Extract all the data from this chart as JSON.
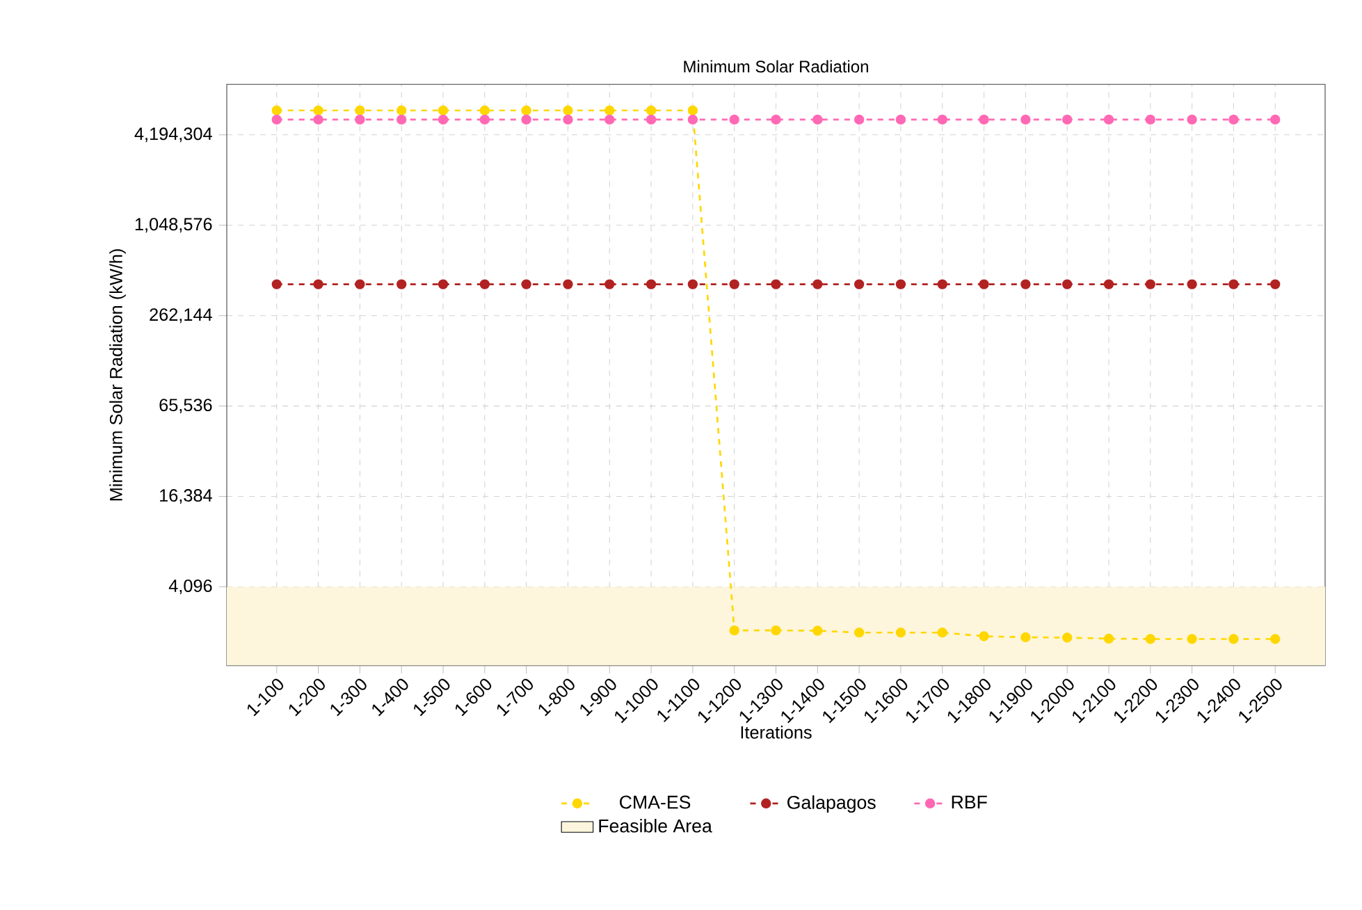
{
  "chart_data": {
    "type": "line",
    "title": "Minimum Solar Radiation",
    "xlabel": "Iterations",
    "ylabel": "Minimum Solar Radiation (kW/h)",
    "categories": [
      "1-100",
      "1-200",
      "1-300",
      "1-400",
      "1-500",
      "1-600",
      "1-700",
      "1-800",
      "1-900",
      "1-1000",
      "1-1100",
      "1-1200",
      "1-1300",
      "1-1400",
      "1-1500",
      "1-1600",
      "1-1700",
      "1-1800",
      "1-1900",
      "1-2000",
      "1-2100",
      "1-2200",
      "1-2300",
      "1-2400",
      "1-2500"
    ],
    "series": [
      {
        "name": "CMA-ES",
        "color": "#ffd700",
        "values": [
          6100000,
          6100000,
          6100000,
          6100000,
          6100000,
          6100000,
          6100000,
          6100000,
          6100000,
          6100000,
          6100000,
          2100,
          2100,
          2090,
          2030,
          2030,
          2030,
          1920,
          1890,
          1880,
          1850,
          1840,
          1840,
          1840,
          1840
        ]
      },
      {
        "name": "Galapagos",
        "color": "#b22222",
        "values": [
          424000,
          424000,
          424000,
          424000,
          424000,
          424000,
          424000,
          424000,
          424000,
          424000,
          424000,
          424000,
          424000,
          424000,
          424000,
          424000,
          424000,
          424000,
          424000,
          424000,
          424000,
          424000,
          424000,
          424000,
          424000
        ]
      },
      {
        "name": "RBF",
        "color": "#ff69b4",
        "values": [
          5300000,
          5300000,
          5300000,
          5300000,
          5300000,
          5300000,
          5300000,
          5300000,
          5300000,
          5300000,
          5300000,
          5300000,
          5300000,
          5300000,
          5300000,
          5300000,
          5300000,
          5300000,
          5300000,
          5300000,
          5300000,
          5300000,
          5300000,
          5300000,
          5300000
        ]
      }
    ],
    "log": "y",
    "ylim": [
      1225,
      9100000
    ],
    "yticks": [
      {
        "value": 4096,
        "label": "4,096"
      },
      {
        "value": 16384,
        "label": "16,384"
      },
      {
        "value": 65536,
        "label": "65,536"
      },
      {
        "value": 262144,
        "label": "262,144"
      },
      {
        "value": 1048576,
        "label": "1,048,576"
      },
      {
        "value": 4194304,
        "label": "4,194,304"
      }
    ],
    "bands": [
      {
        "axis": "y",
        "from": 1225,
        "to": 4096,
        "label": "Feasible Area",
        "color": "#fdf6dc"
      }
    ],
    "grid": true,
    "legend": "bottom",
    "marker": "circle",
    "line_style": "dashed"
  }
}
